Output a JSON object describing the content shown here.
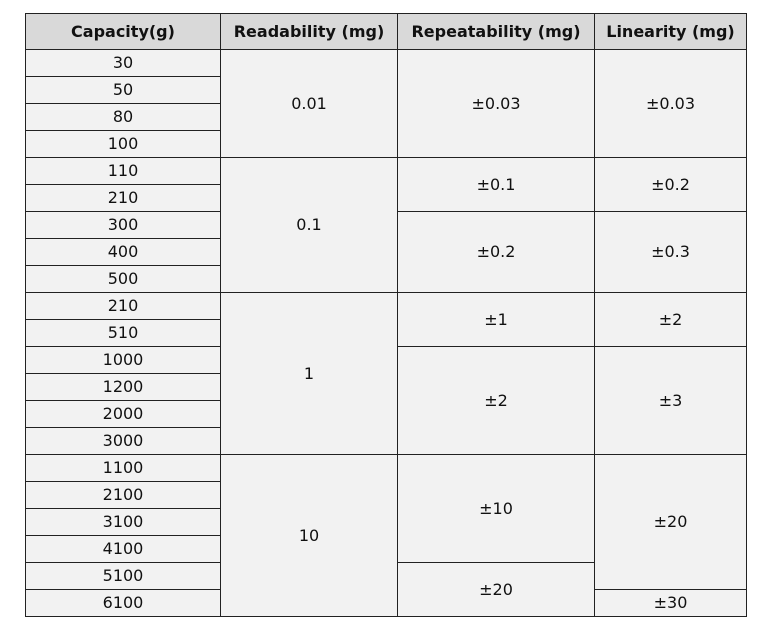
{
  "headers": [
    "Capacity(g)",
    "Readability (mg)",
    "Repeatability (mg)",
    "Linearity (mg)"
  ],
  "capacities": [
    "30",
    "50",
    "80",
    "100",
    "110",
    "210",
    "300",
    "400",
    "500",
    "210",
    "510",
    "1000",
    "1200",
    "2000",
    "3000",
    "1100",
    "2100",
    "3100",
    "4100",
    "5100",
    "6100"
  ],
  "readability": [
    "0.01",
    "0.1",
    "1",
    "10"
  ],
  "repeatability": [
    "±0.03",
    "±0.1",
    "±0.2",
    "±1",
    "±2",
    "±10",
    "±20"
  ],
  "linearity": [
    "±0.03",
    "±0.2",
    "±0.3",
    "±2",
    "±3",
    "±20",
    "±30"
  ]
}
